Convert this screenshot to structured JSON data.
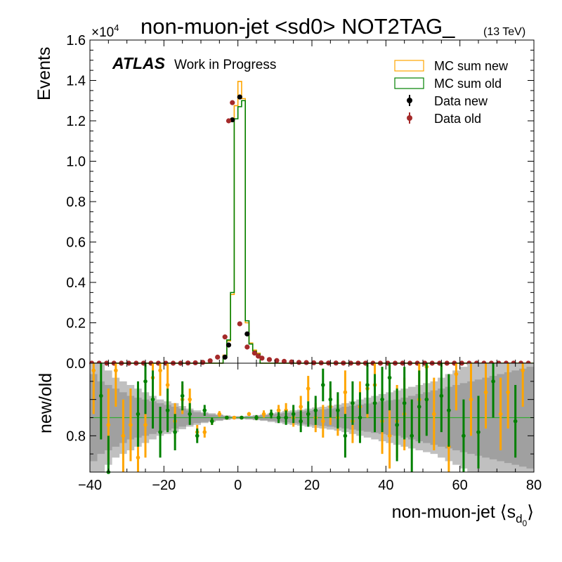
{
  "figure": {
    "title": "non-muon-jet <sd0> NOT2TAG_",
    "energy_label": "(13 TeV)",
    "atlas_label": "ATLAS",
    "atlas_sublabel": "Work in Progress",
    "y_multiplier": "×10",
    "y_exponent": "4",
    "xlabel_main": "non-muon-jet ⟨s",
    "xlabel_sub1": "d",
    "xlabel_sub2": "0",
    "xlabel_close": "⟩",
    "top_ylabel": "Events",
    "ratio_ylabel": "new/old",
    "legend": [
      {
        "key": "mc_new",
        "label": "MC sum new"
      },
      {
        "key": "mc_old",
        "label": "MC sum old"
      },
      {
        "key": "data_new",
        "label": "Data new"
      },
      {
        "key": "data_old",
        "label": "Data old"
      }
    ],
    "colors": {
      "mc_new": "#ffa500",
      "mc_old": "#008000",
      "data_new": "#000000",
      "data_old": "#a52a2a",
      "band_outer": "#c0c0c0",
      "band_inner": "#a0a0a0",
      "ratio_new": "#ffa500",
      "ratio_old": "#008000",
      "ratio_ref_line": "#33aa33"
    }
  },
  "chart_data": [
    {
      "type": "line",
      "panel": "main",
      "xlim": [
        -40,
        80
      ],
      "ylim": [
        0,
        1.6
      ],
      "y_scale_factor": 10000,
      "x_ticks": [
        -40,
        -20,
        0,
        20,
        40,
        60,
        80
      ],
      "y_ticks": [
        0,
        0.2,
        0.4,
        0.6,
        0.8,
        1.0,
        1.2,
        1.4,
        1.6
      ],
      "y_tick_labels": [
        "0.0",
        "0.2",
        "0.4",
        "0.6",
        "0.8",
        "1.0",
        "1.2",
        "1.4",
        "1.6"
      ],
      "bin_edges": [
        -4,
        -3,
        -2,
        -1,
        0,
        1,
        2,
        3,
        4,
        5,
        6
      ],
      "series": [
        {
          "name": "MC sum new",
          "key": "mc_new",
          "style": "step",
          "values": [
            0.04,
            0.11,
            0.34,
            1.275,
            1.395,
            1.31,
            0.2,
            0.1,
            0.065,
            0.05
          ]
        },
        {
          "name": "MC sum old",
          "key": "mc_old",
          "style": "step",
          "values": [
            0.035,
            0.115,
            0.35,
            1.21,
            1.27,
            1.3,
            0.21,
            0.095,
            0.06,
            0.045
          ]
        },
        {
          "name": "Data new",
          "key": "data_new",
          "style": "points",
          "x": [
            -3.5,
            -2.5,
            -1.5,
            0.5,
            2.5
          ],
          "y": [
            0.03,
            0.09,
            1.205,
            1.318,
            0.145
          ]
        },
        {
          "name": "Data old",
          "key": "data_old",
          "style": "points",
          "x": [
            -39.5,
            -37.5,
            -35.5,
            -33.5,
            -31.5,
            -29.5,
            -27.5,
            -25.5,
            -23.5,
            -21.5,
            -19.5,
            -17.5,
            -15.5,
            -13.5,
            -11.5,
            -9.5,
            -7.5,
            -5.5,
            -3.5,
            -2.5,
            -1.5,
            0.5,
            2.5,
            4.5,
            5.5,
            6.5,
            8.5,
            10.5,
            12.5,
            14.5,
            16.5,
            18.5,
            20.5,
            22.5,
            24.5,
            26.5,
            28.5,
            30.5,
            32.5,
            34.5,
            36.5,
            38.5,
            40.5,
            42.5,
            44.5,
            46.5,
            48.5,
            50.5,
            52.5,
            54.5,
            56.5,
            58.5,
            60.5,
            62.5,
            64.5,
            66.5,
            68.5,
            70.5,
            72.5,
            74.5,
            76.5,
            78.5
          ],
          "y": [
            0.0,
            0.0,
            0.0,
            0.0,
            0.0,
            0.0,
            0.0,
            0.0,
            0.0,
            0.0,
            0.0,
            0.0,
            0.0,
            0.001,
            0.002,
            0.004,
            0.012,
            0.03,
            0.13,
            1.2,
            1.29,
            0.195,
            0.08,
            0.05,
            0.035,
            0.025,
            0.018,
            0.013,
            0.009,
            0.006,
            0.004,
            0.003,
            0.002,
            0.0015,
            0.001,
            0.0008,
            0.0005,
            0.0003,
            0.0002,
            0.0001,
            0.0,
            0.0,
            0.0,
            0.0,
            0.0,
            0.0,
            0.0,
            0.0,
            0.0,
            0.0,
            0.0,
            0.0,
            0.0,
            0.0,
            0.0,
            0.0,
            0.0,
            0.0,
            0.0,
            0.0,
            0.0,
            0.0
          ]
        }
      ]
    },
    {
      "type": "scatter",
      "panel": "ratio",
      "xlim": [
        -40,
        80
      ],
      "ylim": [
        0.7,
        1.0
      ],
      "x_ticks": [
        -40,
        -20,
        0,
        20,
        40,
        60,
        80
      ],
      "y_ticks": [
        0.8
      ],
      "y_tick_labels": [
        "0.8"
      ],
      "reference_value": 0.85,
      "band_edges": [
        -40,
        -38,
        -36,
        -34,
        -32,
        -30,
        -28,
        -26,
        -24,
        -22,
        -20,
        -18,
        -16,
        -14,
        -12,
        -10,
        -8,
        -6,
        -4,
        -2,
        0,
        2,
        4,
        6,
        8,
        10,
        12,
        14,
        16,
        18,
        20,
        22,
        24,
        26,
        28,
        30,
        32,
        34,
        36,
        38,
        40,
        42,
        44,
        46,
        48,
        50,
        52,
        54,
        56,
        58,
        60,
        62,
        64,
        66,
        68,
        70,
        72,
        74,
        76,
        78,
        80
      ],
      "band_outer": [
        0.2,
        0.15,
        0.13,
        0.11,
        0.1,
        0.09,
        0.08,
        0.07,
        0.06,
        0.05,
        0.045,
        0.04,
        0.032,
        0.025,
        0.02,
        0.015,
        0.012,
        0.009,
        0.006,
        0.004,
        0.004,
        0.005,
        0.007,
        0.009,
        0.012,
        0.015,
        0.018,
        0.02,
        0.022,
        0.025,
        0.028,
        0.03,
        0.033,
        0.036,
        0.04,
        0.045,
        0.05,
        0.055,
        0.06,
        0.065,
        0.07,
        0.075,
        0.08,
        0.085,
        0.09,
        0.095,
        0.1,
        0.11,
        0.12,
        0.13,
        0.14,
        0.15,
        0.16,
        0.17,
        0.18,
        0.19,
        0.2,
        0.21,
        0.22,
        0.23
      ],
      "band_inner": [
        0.12,
        0.1,
        0.09,
        0.08,
        0.07,
        0.06,
        0.055,
        0.05,
        0.045,
        0.04,
        0.035,
        0.03,
        0.025,
        0.02,
        0.015,
        0.012,
        0.009,
        0.007,
        0.005,
        0.003,
        0.003,
        0.004,
        0.005,
        0.007,
        0.009,
        0.011,
        0.013,
        0.015,
        0.017,
        0.019,
        0.021,
        0.023,
        0.025,
        0.027,
        0.03,
        0.033,
        0.036,
        0.039,
        0.042,
        0.045,
        0.048,
        0.05,
        0.055,
        0.06,
        0.065,
        0.07,
        0.075,
        0.08,
        0.085,
        0.09,
        0.095,
        0.1,
        0.105,
        0.11,
        0.115,
        0.12,
        0.125,
        0.13,
        0.135,
        0.14
      ],
      "series": [
        {
          "name": "MC sum new",
          "key": "ratio_new",
          "x": [
            -39,
            -35,
            -33,
            -31,
            -29,
            -27,
            -25,
            -23,
            -21,
            -19,
            -17,
            -15,
            -13,
            -11,
            -9,
            -7,
            -5,
            -3,
            -1,
            1,
            3,
            5,
            7,
            9,
            11,
            13,
            15,
            17,
            19,
            21,
            23,
            25,
            27,
            29,
            31,
            33,
            35,
            37,
            39,
            41,
            43,
            45,
            49,
            51,
            53,
            57,
            59,
            63,
            67,
            71,
            73,
            77
          ],
          "y": [
            0.98,
            0.83,
            0.98,
            0.8,
            0.83,
            0.74,
            0.83,
            0.96,
            0.98,
            0.94,
            0.84,
            0.9,
            0.9,
            0.81,
            0.81,
            0.84,
            0.86,
            0.85,
            0.85,
            0.85,
            0.86,
            0.85,
            0.86,
            0.86,
            0.87,
            0.87,
            0.85,
            0.88,
            0.93,
            0.85,
            0.84,
            0.88,
            0.85,
            0.92,
            0.84,
            0.88,
            0.93,
            0.94,
            0.84,
            0.8,
            0.84,
            0.86,
            0.9,
            0.99,
            0.86,
            0.77,
            0.97,
            0.9,
            0.92,
            0.86,
            0.92,
            0.98
          ],
          "err": [
            0.12,
            0.1,
            0.1,
            0.1,
            0.1,
            0.09,
            0.09,
            0.08,
            0.07,
            0.06,
            0.05,
            0.04,
            0.03,
            0.02,
            0.015,
            0.01,
            0.008,
            0.005,
            0.004,
            0.004,
            0.005,
            0.007,
            0.01,
            0.012,
            0.015,
            0.02,
            0.025,
            0.03,
            0.035,
            0.04,
            0.045,
            0.05,
            0.05,
            0.06,
            0.06,
            0.07,
            0.08,
            0.08,
            0.09,
            0.09,
            0.1,
            0.1,
            0.1,
            0.1,
            0.1,
            0.1,
            0.1,
            0.1,
            0.1,
            0.1,
            0.1,
            0.1
          ]
        },
        {
          "name": "MC sum old",
          "key": "ratio_old",
          "x": [
            -37,
            -35,
            -27,
            -25,
            -23,
            -21,
            -19,
            -17,
            -15,
            -13,
            -11,
            -9,
            -7,
            -3,
            1,
            5,
            9,
            11,
            13,
            15,
            17,
            19,
            21,
            23,
            25,
            27,
            29,
            31,
            33,
            35,
            37,
            39,
            41,
            43,
            45,
            47,
            49,
            51,
            55,
            57,
            61,
            65,
            69,
            75
          ],
          "y": [
            0.91,
            0.7,
            0.86,
            0.95,
            0.9,
            0.81,
            0.87,
            0.81,
            0.91,
            0.86,
            0.8,
            0.87,
            0.84,
            0.85,
            0.85,
            0.85,
            0.86,
            0.85,
            0.85,
            0.86,
            0.84,
            0.86,
            0.87,
            0.94,
            0.9,
            0.87,
            0.8,
            0.89,
            0.85,
            0.94,
            0.89,
            0.9,
            0.96,
            0.83,
            0.89,
            0.8,
            0.88,
            0.9,
            0.91,
            0.87,
            0.8,
            0.81,
            0.95,
            0.84
          ],
          "err": [
            0.12,
            0.1,
            0.09,
            0.09,
            0.08,
            0.07,
            0.06,
            0.05,
            0.04,
            0.03,
            0.02,
            0.015,
            0.01,
            0.005,
            0.004,
            0.007,
            0.012,
            0.015,
            0.02,
            0.025,
            0.03,
            0.035,
            0.04,
            0.045,
            0.05,
            0.05,
            0.06,
            0.06,
            0.07,
            0.08,
            0.08,
            0.09,
            0.09,
            0.1,
            0.1,
            0.1,
            0.1,
            0.1,
            0.1,
            0.1,
            0.1,
            0.1,
            0.1,
            0.1
          ]
        }
      ]
    }
  ]
}
